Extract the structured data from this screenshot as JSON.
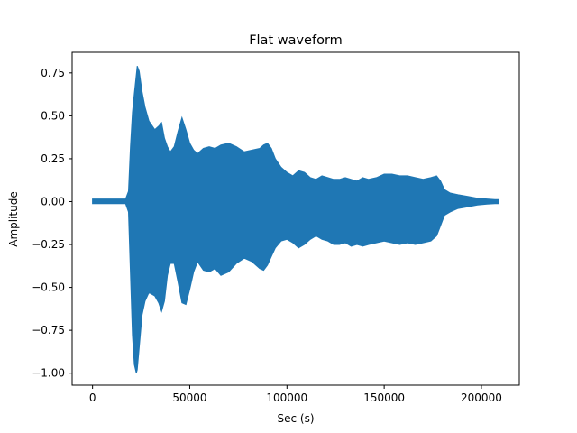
{
  "chart_data": {
    "type": "area",
    "title": "Flat waveform",
    "xlabel": "Sec (s)",
    "ylabel": "Amplitude",
    "xlim": [
      -10500,
      219500
    ],
    "ylim": [
      -1.07,
      0.87
    ],
    "xticks": [
      0,
      50000,
      100000,
      150000,
      200000
    ],
    "xtick_labels": [
      "0",
      "50000",
      "100000",
      "150000",
      "200000"
    ],
    "yticks": [
      -1.0,
      -0.75,
      -0.5,
      -0.25,
      0.0,
      0.25,
      0.5,
      0.75
    ],
    "ytick_labels": [
      "−1.00",
      "−0.75",
      "−0.50",
      "−0.25",
      "0.00",
      "0.25",
      "0.50",
      "0.75"
    ],
    "grid": false,
    "series": [
      {
        "color": "#1f77b4",
        "envelope": {
          "x": [
            0,
            17000,
            18500,
            19500,
            20500,
            21500,
            22500,
            23000,
            24000,
            25500,
            27000,
            29000,
            32000,
            34000,
            35500,
            37000,
            38500,
            40000,
            42000,
            44000,
            46000,
            48000,
            50000,
            52000,
            54000,
            57000,
            60000,
            63000,
            66000,
            70000,
            74000,
            78000,
            82000,
            86000,
            88000,
            90000,
            92000,
            94000,
            97000,
            100000,
            103000,
            106000,
            109000,
            112000,
            115000,
            118000,
            121000,
            124000,
            127000,
            130000,
            133000,
            136000,
            139000,
            142000,
            146000,
            150000,
            154000,
            158000,
            162000,
            166000,
            170000,
            174000,
            177000,
            179000,
            181000,
            184000,
            188000,
            193000,
            198000,
            203000,
            207000,
            209000
          ],
          "upper": [
            0.015,
            0.015,
            0.06,
            0.32,
            0.52,
            0.63,
            0.74,
            0.79,
            0.76,
            0.64,
            0.55,
            0.47,
            0.42,
            0.44,
            0.46,
            0.37,
            0.32,
            0.29,
            0.32,
            0.41,
            0.49,
            0.42,
            0.34,
            0.3,
            0.28,
            0.31,
            0.32,
            0.31,
            0.33,
            0.34,
            0.32,
            0.29,
            0.3,
            0.31,
            0.33,
            0.34,
            0.31,
            0.25,
            0.2,
            0.17,
            0.15,
            0.18,
            0.17,
            0.14,
            0.13,
            0.15,
            0.14,
            0.13,
            0.13,
            0.14,
            0.13,
            0.12,
            0.14,
            0.13,
            0.14,
            0.16,
            0.16,
            0.15,
            0.15,
            0.14,
            0.13,
            0.14,
            0.15,
            0.12,
            0.07,
            0.05,
            0.04,
            0.03,
            0.02,
            0.015,
            0.012,
            0.012
          ],
          "lower": [
            -0.012,
            -0.012,
            -0.06,
            -0.42,
            -0.78,
            -0.95,
            -1.0,
            -0.98,
            -0.85,
            -0.66,
            -0.58,
            -0.53,
            -0.55,
            -0.59,
            -0.64,
            -0.58,
            -0.43,
            -0.36,
            -0.36,
            -0.47,
            -0.59,
            -0.6,
            -0.51,
            -0.41,
            -0.35,
            -0.4,
            -0.41,
            -0.39,
            -0.43,
            -0.41,
            -0.36,
            -0.33,
            -0.35,
            -0.39,
            -0.4,
            -0.37,
            -0.32,
            -0.27,
            -0.23,
            -0.22,
            -0.24,
            -0.27,
            -0.25,
            -0.22,
            -0.2,
            -0.22,
            -0.23,
            -0.25,
            -0.25,
            -0.24,
            -0.26,
            -0.25,
            -0.26,
            -0.25,
            -0.24,
            -0.23,
            -0.24,
            -0.25,
            -0.24,
            -0.25,
            -0.24,
            -0.23,
            -0.2,
            -0.14,
            -0.08,
            -0.06,
            -0.04,
            -0.03,
            -0.02,
            -0.015,
            -0.012,
            -0.012
          ]
        }
      }
    ]
  }
}
